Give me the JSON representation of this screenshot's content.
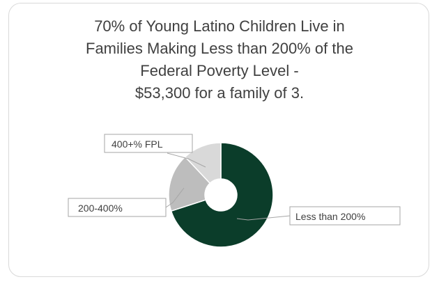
{
  "chart_data": {
    "type": "pie",
    "title_lines": [
      "70% of Young Latino Children Live in",
      "Families Making Less than 200% of the",
      "Federal Poverty Level -",
      "$53,300 for a family of 3."
    ],
    "categories": [
      "Less than 200%",
      "200-400%",
      "400+% FPL"
    ],
    "values": [
      70,
      18,
      12
    ],
    "colors": [
      "#0b3d2a",
      "#bdbdbd",
      "#d9d9d9"
    ],
    "style": "doughnut",
    "legend": "none",
    "data_labels": "category names with leader lines"
  }
}
